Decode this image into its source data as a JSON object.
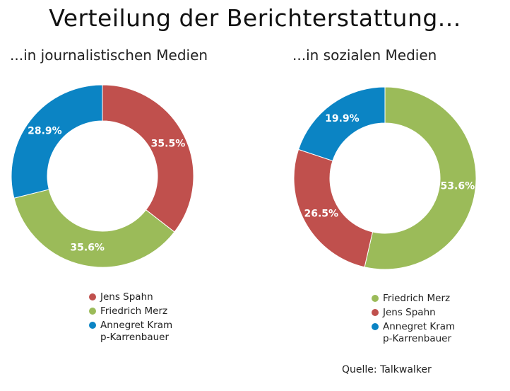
{
  "title": "Verteilung der Berichterstattung...",
  "source": "Quelle: Talkwalker",
  "chart_data": [
    {
      "type": "pie",
      "title": "...in journalistischen Medien",
      "legend": "bottom",
      "series": [
        {
          "name": "Jens Spahn",
          "value": 35.5,
          "label": "35.5%",
          "color": "#c0504d"
        },
        {
          "name": "Friedrich Merz",
          "value": 35.6,
          "label": "35.6%",
          "color": "#9bbb59"
        },
        {
          "name": "Annegret Kramp-Karrenbauer",
          "legend_lines": [
            "Annegret Kram",
            "p-Karrenbauer"
          ],
          "value": 28.9,
          "label": "28.9%",
          "color": "#0b84c4"
        }
      ]
    },
    {
      "type": "pie",
      "title": "...in sozialen Medien",
      "legend": "bottom",
      "series": [
        {
          "name": "Friedrich Merz",
          "value": 53.6,
          "label": "53.6%",
          "color": "#9bbb59"
        },
        {
          "name": "Jens Spahn",
          "value": 26.5,
          "label": "26.5%",
          "color": "#c0504d"
        },
        {
          "name": "Annegret Kramp-Karrenbauer",
          "legend_lines": [
            "Annegret Kram",
            "p-Karrenbauer"
          ],
          "value": 19.9,
          "label": "19.9%",
          "color": "#0b84c4"
        }
      ]
    }
  ]
}
